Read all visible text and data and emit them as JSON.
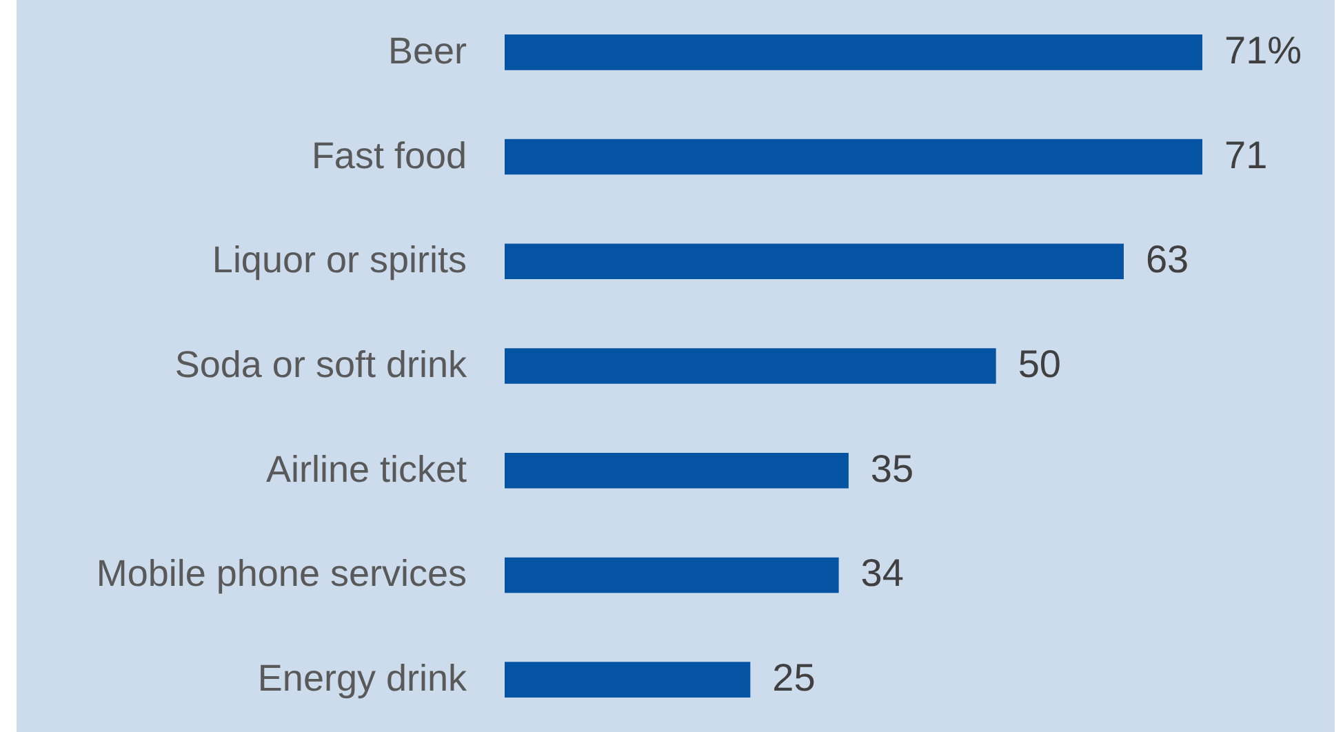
{
  "chart_data": {
    "type": "bar",
    "orientation": "horizontal",
    "categories": [
      "Beer",
      "Fast food",
      "Liquor or spirits",
      "Soda or soft drink",
      "Airline ticket",
      "Mobile phone services",
      "Energy drink"
    ],
    "values": [
      71,
      71,
      63,
      50,
      35,
      34,
      25
    ],
    "value_labels": [
      "71%",
      "71",
      "63",
      "50",
      "35",
      "34",
      "25"
    ],
    "color": "#0553a3"
  }
}
